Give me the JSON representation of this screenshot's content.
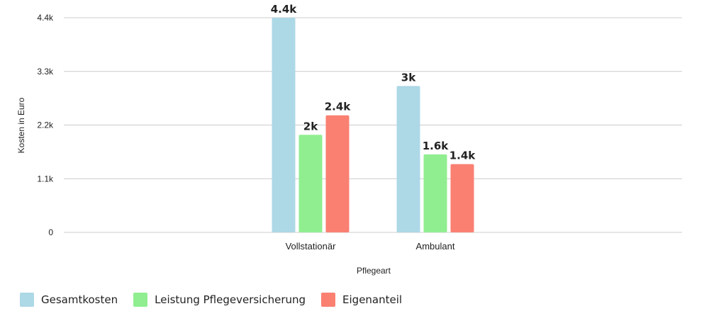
{
  "chart_data": {
    "type": "bar",
    "categories": [
      "Vollstationär",
      "Ambulant"
    ],
    "series": [
      {
        "name": "Gesamtkosten",
        "color": "#add8e6",
        "values": [
          4400,
          3000
        ],
        "labels": [
          "4.4k",
          "3k"
        ]
      },
      {
        "name": "Leistung Pflegeversicherung",
        "color": "#90ee90",
        "values": [
          2000,
          1600
        ],
        "labels": [
          "2k",
          "1.6k"
        ]
      },
      {
        "name": "Eigenanteil",
        "color": "#fa8072",
        "values": [
          2400,
          1400
        ],
        "labels": [
          "2.4k",
          "1.4k"
        ]
      }
    ],
    "yticks": [
      0,
      1100,
      2200,
      3300,
      4400
    ],
    "ytick_labels": [
      "0",
      "1.1k",
      "2.2k",
      "3.3k",
      "4.4k"
    ],
    "ylim": [
      0,
      4400
    ],
    "xlabel": "Pflegeart",
    "ylabel": "Kosten in Euro",
    "grid": true,
    "legend_position": "bottom-left"
  }
}
